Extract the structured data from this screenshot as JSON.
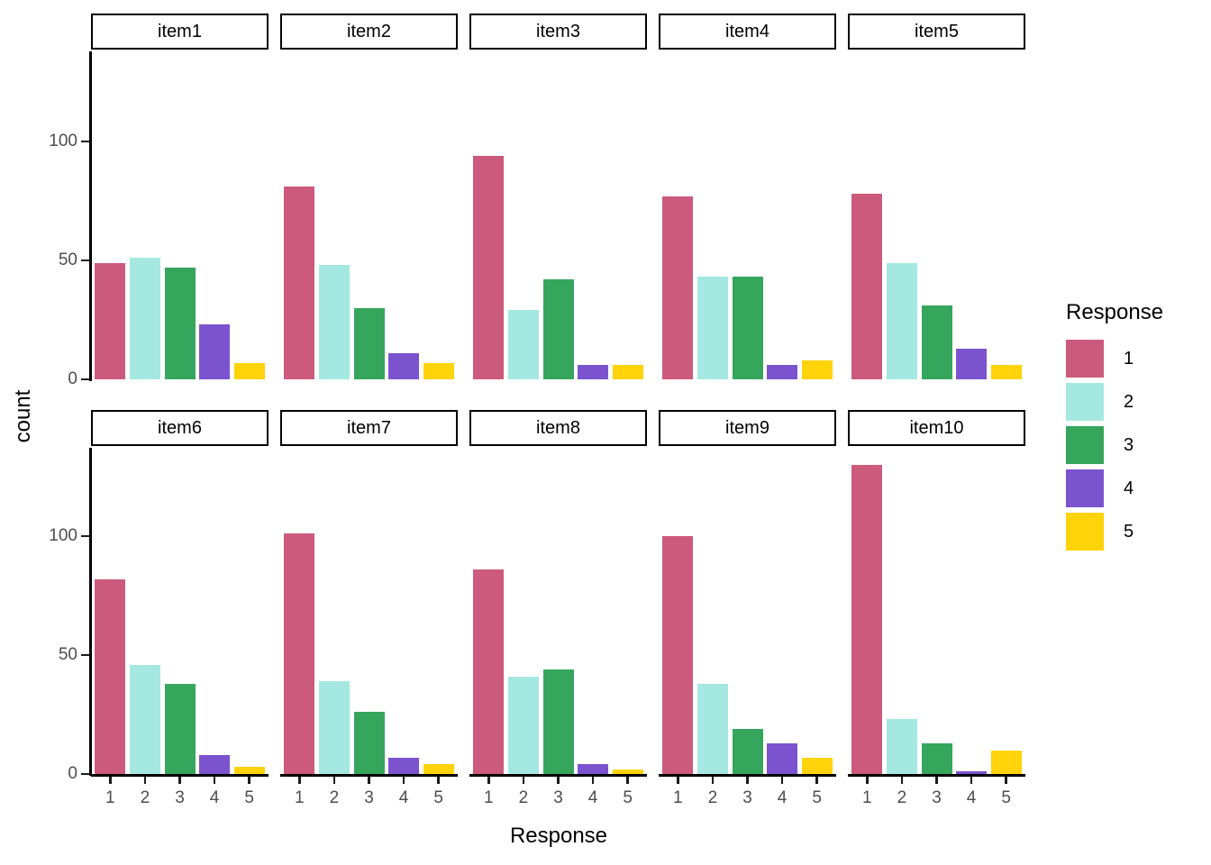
{
  "figure": {
    "y_axis_title": "count",
    "x_axis_title": "Response"
  },
  "legend": {
    "title": "Response",
    "entries": [
      {
        "label": "1",
        "color": "#CC5A7C"
      },
      {
        "label": "2",
        "color": "#A5E8E1"
      },
      {
        "label": "3",
        "color": "#35A65C"
      },
      {
        "label": "4",
        "color": "#7C53CE"
      },
      {
        "label": "5",
        "color": "#FFD30A"
      }
    ]
  },
  "chart_data": {
    "type": "bar",
    "title": "",
    "xlabel": "Response",
    "ylabel": "count",
    "categories": [
      "1",
      "2",
      "3",
      "4",
      "5"
    ],
    "y_ticks": [
      0,
      50,
      100
    ],
    "ylim": [
      0,
      138
    ],
    "grid": false,
    "legend_title": "Response",
    "legend_entries": [
      "1",
      "2",
      "3",
      "4",
      "5"
    ],
    "legend_position": "right",
    "series_colors": [
      "#CC5A7C",
      "#A5E8E1",
      "#35A65C",
      "#7C53CE",
      "#FFD30A"
    ],
    "facet_layout": {
      "rows": 2,
      "cols": 5
    },
    "facets": [
      {
        "title": "item1",
        "values": [
          49,
          51,
          47,
          23,
          7
        ]
      },
      {
        "title": "item2",
        "values": [
          81,
          48,
          30,
          11,
          7
        ]
      },
      {
        "title": "item3",
        "values": [
          94,
          29,
          42,
          6,
          6
        ]
      },
      {
        "title": "item4",
        "values": [
          77,
          43,
          43,
          6,
          8
        ]
      },
      {
        "title": "item5",
        "values": [
          78,
          49,
          31,
          13,
          6
        ]
      },
      {
        "title": "item6",
        "values": [
          82,
          46,
          38,
          8,
          3
        ]
      },
      {
        "title": "item7",
        "values": [
          101,
          39,
          26,
          7,
          4
        ]
      },
      {
        "title": "item8",
        "values": [
          86,
          41,
          44,
          4,
          2
        ]
      },
      {
        "title": "item9",
        "values": [
          100,
          38,
          19,
          13,
          7
        ]
      },
      {
        "title": "item10",
        "values": [
          130,
          23,
          13,
          1,
          10
        ]
      }
    ]
  }
}
